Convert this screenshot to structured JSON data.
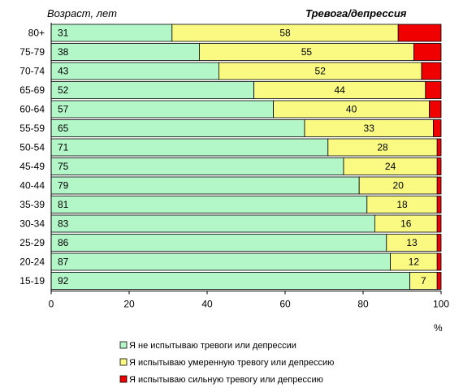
{
  "chart_data": {
    "type": "bar",
    "orientation": "horizontal",
    "stacked": true,
    "title": "Тревога/депрессия",
    "ylabel": "Возраст, лет",
    "xunit": "%",
    "xlim": [
      0,
      100
    ],
    "xticks": [
      0,
      20,
      40,
      60,
      80,
      100
    ],
    "grid": false,
    "legend_position": "bottom",
    "categories": [
      "80+",
      "75-79",
      "70-74",
      "65-69",
      "60-64",
      "55-59",
      "50-54",
      "45-49",
      "40-44",
      "35-39",
      "30-34",
      "25-29",
      "20-24",
      "15-19"
    ],
    "series": [
      {
        "name": "Я не испытываю тревоги или депрессии",
        "color": "#B3F7C8",
        "values": [
          31,
          38,
          43,
          52,
          57,
          65,
          71,
          75,
          79,
          81,
          83,
          86,
          87,
          92
        ]
      },
      {
        "name": "Я испытываю умеренную тревогу или депрессию",
        "color": "#FAFA82",
        "values": [
          58,
          55,
          52,
          44,
          40,
          33,
          28,
          24,
          20,
          18,
          16,
          13,
          12,
          7
        ]
      },
      {
        "name": "Я испытываю сильную тревогу или депрессию",
        "color": "#F00000",
        "values": [
          11,
          7,
          5,
          4,
          3,
          2,
          1,
          1,
          1,
          1,
          1,
          1,
          1,
          1
        ]
      }
    ]
  }
}
